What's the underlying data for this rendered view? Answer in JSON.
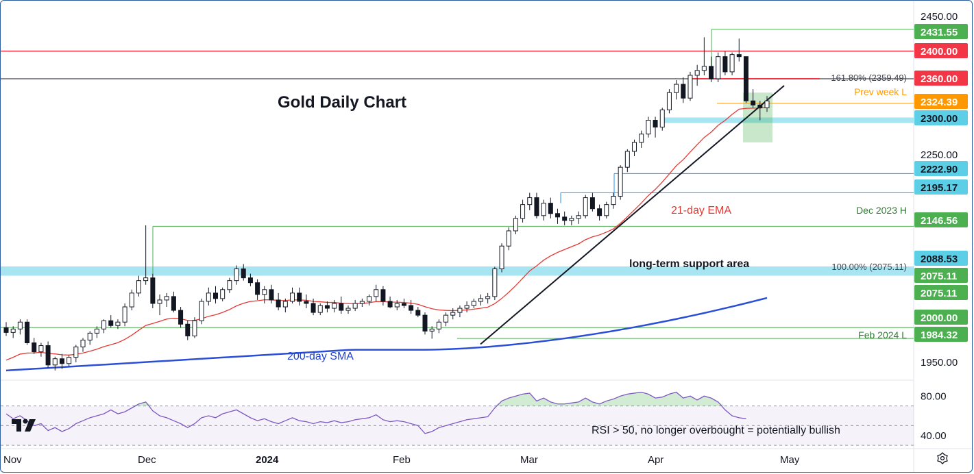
{
  "chart_data": {
    "type": "candlestick",
    "title": "Gold Daily Chart",
    "price_axis": {
      "ylim": [
        1925,
        2465
      ],
      "ticks": [
        2450.0,
        2300.0,
        2250.0,
        1950.0
      ],
      "tick_labels": [
        "2450.00",
        "2300.00",
        "2250.00",
        "1950.00"
      ]
    },
    "time_axis": {
      "labels": [
        "Nov",
        "Dec",
        "2024",
        "Feb",
        "Mar",
        "Apr",
        "May"
      ],
      "bold": [
        "2024"
      ]
    },
    "candles_ohlc_approx": [
      [
        2000,
        2008,
        1988,
        1993
      ],
      [
        1993,
        2002,
        1985,
        1998
      ],
      [
        1998,
        2012,
        1990,
        2008
      ],
      [
        2008,
        2012,
        1975,
        1978
      ],
      [
        1978,
        1985,
        1962,
        1965
      ],
      [
        1965,
        1978,
        1958,
        1974
      ],
      [
        1974,
        1980,
        1942,
        1946
      ],
      [
        1946,
        1958,
        1938,
        1955
      ],
      [
        1955,
        1962,
        1940,
        1948
      ],
      [
        1948,
        1960,
        1944,
        1957
      ],
      [
        1957,
        1975,
        1950,
        1972
      ],
      [
        1972,
        1985,
        1965,
        1982
      ],
      [
        1982,
        1995,
        1975,
        1992
      ],
      [
        1992,
        2002,
        1985,
        1998
      ],
      [
        1998,
        2012,
        1992,
        2010
      ],
      [
        2010,
        2018,
        2000,
        2003
      ],
      [
        2003,
        2012,
        1998,
        2008
      ],
      [
        2008,
        2035,
        2002,
        2030
      ],
      [
        2030,
        2055,
        2025,
        2050
      ],
      [
        2050,
        2075,
        2045,
        2068
      ],
      [
        2068,
        2148,
        2062,
        2072
      ],
      [
        2072,
        2078,
        2028,
        2035
      ],
      [
        2035,
        2048,
        2018,
        2040
      ],
      [
        2040,
        2050,
        2030,
        2045
      ],
      [
        2045,
        2052,
        2022,
        2025
      ],
      [
        2025,
        2030,
        2000,
        2005
      ],
      [
        2005,
        2010,
        1982,
        1988
      ],
      [
        1988,
        2015,
        1985,
        2010
      ],
      [
        2010,
        2042,
        2005,
        2038
      ],
      [
        2038,
        2058,
        2032,
        2050
      ],
      [
        2050,
        2060,
        2035,
        2042
      ],
      [
        2042,
        2058,
        2038,
        2055
      ],
      [
        2055,
        2072,
        2050,
        2068
      ],
      [
        2068,
        2090,
        2062,
        2085
      ],
      [
        2085,
        2092,
        2068,
        2072
      ],
      [
        2072,
        2078,
        2060,
        2065
      ],
      [
        2065,
        2070,
        2040,
        2048
      ],
      [
        2048,
        2060,
        2035,
        2055
      ],
      [
        2055,
        2062,
        2035,
        2040
      ],
      [
        2040,
        2050,
        2025,
        2030
      ],
      [
        2030,
        2042,
        2022,
        2038
      ],
      [
        2038,
        2058,
        2035,
        2050
      ],
      [
        2050,
        2058,
        2032,
        2038
      ],
      [
        2038,
        2048,
        2028,
        2035
      ],
      [
        2035,
        2042,
        2018,
        2022
      ],
      [
        2022,
        2035,
        2018,
        2032
      ],
      [
        2032,
        2038,
        2022,
        2028
      ],
      [
        2028,
        2040,
        2022,
        2035
      ],
      [
        2035,
        2045,
        2020,
        2025
      ],
      [
        2025,
        2032,
        2020,
        2028
      ],
      [
        2028,
        2040,
        2024,
        2035
      ],
      [
        2035,
        2042,
        2030,
        2038
      ],
      [
        2038,
        2048,
        2032,
        2045
      ],
      [
        2045,
        2062,
        2038,
        2055
      ],
      [
        2055,
        2060,
        2032,
        2038
      ],
      [
        2038,
        2045,
        2028,
        2030
      ],
      [
        2030,
        2040,
        2025,
        2035
      ],
      [
        2035,
        2042,
        2028,
        2032
      ],
      [
        2032,
        2040,
        2020,
        2025
      ],
      [
        2025,
        2030,
        2015,
        2018
      ],
      [
        2018,
        2022,
        1990,
        1995
      ],
      [
        1995,
        2002,
        1984,
        1998
      ],
      [
        1998,
        2012,
        1992,
        2008
      ],
      [
        2008,
        2022,
        2002,
        2018
      ],
      [
        2018,
        2028,
        2012,
        2022
      ],
      [
        2022,
        2032,
        2015,
        2028
      ],
      [
        2028,
        2038,
        2022,
        2032
      ],
      [
        2032,
        2042,
        2028,
        2038
      ],
      [
        2038,
        2048,
        2032,
        2042
      ],
      [
        2042,
        2050,
        2035,
        2045
      ],
      [
        2045,
        2088,
        2040,
        2085
      ],
      [
        2085,
        2122,
        2080,
        2118
      ],
      [
        2118,
        2145,
        2112,
        2140
      ],
      [
        2140,
        2162,
        2135,
        2158
      ],
      [
        2158,
        2185,
        2152,
        2178
      ],
      [
        2178,
        2195,
        2170,
        2188
      ],
      [
        2188,
        2195,
        2158,
        2162
      ],
      [
        2162,
        2185,
        2155,
        2180
      ],
      [
        2180,
        2188,
        2158,
        2165
      ],
      [
        2165,
        2172,
        2150,
        2160
      ],
      [
        2160,
        2168,
        2148,
        2155
      ],
      [
        2155,
        2162,
        2148,
        2158
      ],
      [
        2158,
        2168,
        2150,
        2162
      ],
      [
        2162,
        2192,
        2158,
        2188
      ],
      [
        2188,
        2195,
        2168,
        2172
      ],
      [
        2172,
        2178,
        2155,
        2162
      ],
      [
        2162,
        2182,
        2158,
        2178
      ],
      [
        2178,
        2195,
        2172,
        2190
      ],
      [
        2190,
        2235,
        2185,
        2232
      ],
      [
        2232,
        2258,
        2225,
        2255
      ],
      [
        2255,
        2272,
        2248,
        2268
      ],
      [
        2268,
        2285,
        2260,
        2280
      ],
      [
        2280,
        2305,
        2275,
        2300
      ],
      [
        2300,
        2305,
        2275,
        2290
      ],
      [
        2290,
        2318,
        2285,
        2315
      ],
      [
        2315,
        2345,
        2310,
        2340
      ],
      [
        2340,
        2358,
        2330,
        2352
      ],
      [
        2352,
        2362,
        2325,
        2332
      ],
      [
        2332,
        2370,
        2328,
        2365
      ],
      [
        2365,
        2380,
        2350,
        2372
      ],
      [
        2372,
        2420,
        2365,
        2378
      ],
      [
        2378,
        2392,
        2355,
        2360
      ],
      [
        2360,
        2398,
        2355,
        2392
      ],
      [
        2392,
        2400,
        2365,
        2370
      ],
      [
        2370,
        2398,
        2365,
        2395
      ],
      [
        2395,
        2418,
        2385,
        2392
      ],
      [
        2392,
        2392,
        2325,
        2328
      ],
      [
        2328,
        2345,
        2318,
        2322
      ],
      [
        2322,
        2328,
        2300,
        2318
      ],
      [
        2318,
        2335,
        2312,
        2328
      ]
    ],
    "price_tags": [
      {
        "label": "2431.55",
        "value": 2431.55,
        "color": "#4caf50"
      },
      {
        "label": "2400.00",
        "value": 2400.0,
        "color": "#f23645"
      },
      {
        "label": "2360.00",
        "value": 2360.0,
        "color": "#f23645"
      },
      {
        "label": "2324.39",
        "value": 2324.39,
        "color": "#ff9800"
      },
      {
        "label": "2300.00",
        "value": 2300.0,
        "color": "#5ccfe6"
      },
      {
        "label": "2222.90",
        "value": 2222.9,
        "color": "#5ccfe6"
      },
      {
        "label": "2195.17",
        "value": 2195.17,
        "color": "#5ccfe6"
      },
      {
        "label": "2146.56",
        "value": 2146.56,
        "color": "#4caf50"
      },
      {
        "label": "2088.53",
        "value": 2088.53,
        "color": "#5ccfe6"
      },
      {
        "label": "2075.11",
        "value": 2075.11,
        "color": "#4caf50"
      },
      {
        "label": "2075.11",
        "value": 2075.11,
        "color": "#4caf50"
      },
      {
        "label": "2000.00",
        "value": 2000.0,
        "color": "#4caf50"
      },
      {
        "label": "1984.32",
        "value": 1984.32,
        "color": "#4caf50"
      }
    ],
    "horizontal_levels": [
      {
        "value": 2431.55,
        "color": "#4caf50"
      },
      {
        "value": 2400.0,
        "color": "#f23645"
      },
      {
        "value": 2360.0,
        "color": "#131722"
      },
      {
        "value": 2324.39,
        "color": "#ff9800"
      },
      {
        "value": 2222.9,
        "color": "#2196f3"
      },
      {
        "value": 2195.17,
        "color": "#2196f3"
      },
      {
        "value": 2146.56,
        "color": "#4caf50"
      },
      {
        "value": 2000.0,
        "color": "#4caf50"
      },
      {
        "value": 1984.32,
        "color": "#4caf50"
      }
    ],
    "support_zones": [
      {
        "from": 2075.11,
        "to": 2088.53,
        "color": "#5ccfe6"
      },
      {
        "from": 2296,
        "to": 2304,
        "color": "#5ccfe6"
      }
    ],
    "fib_labels": [
      {
        "text": "161.80% (2359.49)",
        "value": 2359.49
      },
      {
        "text": "100.00% (2075.11)",
        "value": 2075.11
      }
    ],
    "annotations": [
      {
        "text": "Prev week L",
        "color": "#ff9800"
      },
      {
        "text": "21-day EMA",
        "color": "#e53935"
      },
      {
        "text": "Dec 2023 H",
        "color": "#2e7d32"
      },
      {
        "text": "long-term support area",
        "color": "#131722"
      },
      {
        "text": "200-day SMA",
        "color": "#1e3fd0"
      },
      {
        "text": "Feb 2024 L",
        "color": "#2e7d32"
      }
    ],
    "series": [
      {
        "name": "21-day EMA",
        "color": "#e53935"
      },
      {
        "name": "200-day SMA",
        "color": "#2a4fd6"
      }
    ],
    "rsi": {
      "ylim": [
        28,
        92
      ],
      "ticks": [
        80.0,
        40.0
      ],
      "tick_labels": [
        "80.00",
        "40.00"
      ],
      "overbought": 70,
      "oversold": 30,
      "caption": "RSI > 50, no longer overbought = potentially bullish",
      "values": [
        62,
        57,
        60,
        55,
        50,
        52,
        45,
        48,
        44,
        47,
        52,
        55,
        58,
        60,
        62,
        66,
        62,
        64,
        68,
        72,
        74,
        65,
        60,
        58,
        55,
        52,
        48,
        52,
        58,
        60,
        58,
        62,
        64,
        66,
        62,
        58,
        55,
        57,
        54,
        52,
        55,
        58,
        55,
        54,
        52,
        54,
        53,
        55,
        53,
        54,
        56,
        57,
        58,
        61,
        56,
        54,
        55,
        54,
        52,
        50,
        42,
        44,
        48,
        50,
        52,
        54,
        56,
        57,
        58,
        59,
        68,
        75,
        78,
        80,
        82,
        83,
        75,
        78,
        74,
        72,
        72,
        73,
        74,
        78,
        74,
        72,
        75,
        77,
        80,
        82,
        83,
        84,
        82,
        78,
        79,
        82,
        84,
        78,
        80,
        76,
        80,
        78,
        74,
        66,
        60,
        58,
        57
      ]
    }
  },
  "branding": {
    "logo": "tradingview-logo-icon"
  },
  "controls": {
    "settings_icon": "gear-icon"
  }
}
